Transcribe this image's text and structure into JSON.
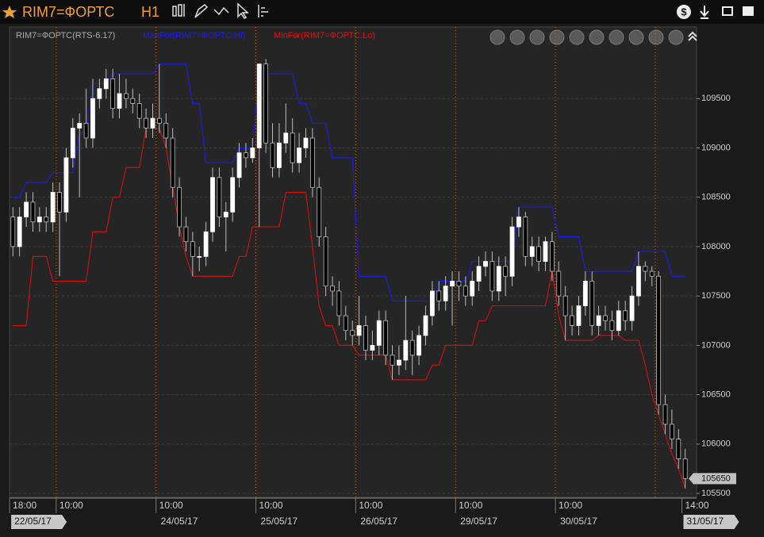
{
  "window": {
    "symbol": "RIM7=ФОРТС",
    "interval": "H1"
  },
  "chart_data": {
    "type": "candlestick",
    "name": "RIM7=ФОРТС(RTS-6.17)",
    "categories": [
      "18:00",
      null,
      null,
      null,
      null,
      null,
      null,
      "10:00",
      null,
      null,
      null,
      null,
      null,
      null,
      null,
      null,
      null,
      null,
      null,
      null,
      null,
      null,
      "10:00",
      null,
      null,
      null,
      null,
      null,
      null,
      null,
      null,
      null,
      null,
      null,
      null,
      null,
      null,
      "10:00",
      null,
      null,
      null,
      null,
      null,
      null,
      null,
      null,
      null,
      null,
      null,
      null,
      null,
      null,
      "10:00",
      null,
      null,
      null,
      null,
      null,
      null,
      null,
      null,
      null,
      null,
      null,
      null,
      null,
      null,
      "10:00",
      null,
      null,
      null,
      null,
      null,
      null,
      null,
      null,
      null,
      null,
      null,
      null,
      null,
      null,
      "10:00",
      null,
      null,
      null,
      null,
      null,
      null,
      null,
      null,
      null,
      null,
      null,
      null,
      null,
      null,
      null,
      null,
      null,
      null,
      "14:00"
    ],
    "dates": [
      "22/05/17",
      null,
      null,
      null,
      null,
      null,
      null,
      null,
      null,
      null,
      null,
      null,
      null,
      null,
      null,
      null,
      null,
      null,
      null,
      null,
      null,
      null,
      "24/05/17",
      null,
      null,
      null,
      null,
      null,
      null,
      null,
      null,
      null,
      null,
      null,
      null,
      null,
      null,
      "25/05/17",
      null,
      null,
      null,
      null,
      null,
      null,
      null,
      null,
      null,
      null,
      null,
      null,
      null,
      null,
      "26/05/17",
      null,
      null,
      null,
      null,
      null,
      null,
      null,
      null,
      null,
      null,
      null,
      null,
      null,
      null,
      "29/05/17",
      null,
      null,
      null,
      null,
      null,
      null,
      null,
      null,
      null,
      null,
      null,
      null,
      null,
      null,
      "30/05/17",
      null,
      null,
      null,
      null,
      null,
      null,
      null,
      null,
      null,
      null,
      null,
      null,
      null,
      null,
      null,
      null,
      null,
      null,
      "31/05/17"
    ],
    "opens": [
      108300,
      108000,
      108300,
      108450,
      108250,
      108300,
      108250,
      108550,
      108350,
      108900,
      109200,
      109250,
      109100,
      109500,
      109600,
      109700,
      109400,
      109550,
      109500,
      109450,
      109300,
      109200,
      109300,
      109250,
      109100,
      108600,
      108200,
      108050,
      107900,
      107900,
      108150,
      108700,
      108300,
      108350,
      108700,
      108950,
      108900,
      109000,
      109850,
      109050,
      108800,
      109050,
      109150,
      108850,
      109000,
      109100,
      108600,
      108100,
      107600,
      107550,
      107300,
      107150,
      107100,
      107200,
      106950,
      107000,
      107250,
      106900,
      106800,
      106850,
      107050,
      106900,
      107100,
      107300,
      107550,
      107450,
      107600,
      107650,
      107600,
      107500,
      107650,
      107800,
      107850,
      107550,
      107800,
      107700,
      108200,
      108300,
      107900,
      108000,
      107850,
      108050,
      107750,
      107500,
      107300,
      107200,
      107400,
      107650,
      107200,
      107300,
      107250,
      107150,
      107350,
      107250,
      107500,
      107800,
      107750,
      107700,
      106400,
      106200,
      106050,
      105850
    ],
    "highs": [
      108400,
      108400,
      108550,
      108550,
      108400,
      108400,
      108650,
      108650,
      109000,
      109300,
      109350,
      109600,
      109700,
      109700,
      109800,
      109800,
      109750,
      109700,
      109600,
      109550,
      109400,
      109450,
      109850,
      109350,
      109200,
      108700,
      108300,
      108150,
      108000,
      108250,
      108800,
      108800,
      108450,
      108800,
      109050,
      109050,
      109100,
      109800,
      109900,
      109250,
      109250,
      109450,
      109300,
      109150,
      109200,
      109200,
      108700,
      108200,
      107700,
      107650,
      107400,
      107250,
      107500,
      107300,
      107150,
      107350,
      107350,
      107000,
      107000,
      107500,
      107150,
      107200,
      107400,
      107650,
      107650,
      107700,
      107750,
      107750,
      107700,
      107750,
      107900,
      107950,
      107950,
      107900,
      107900,
      108300,
      108400,
      108350,
      108100,
      108100,
      108100,
      108150,
      107850,
      107600,
      107400,
      107500,
      107750,
      107750,
      107400,
      107400,
      107350,
      107450,
      107450,
      107600,
      107950,
      107850,
      107800,
      107750,
      106500,
      106350,
      106150,
      105950
    ],
    "lows": [
      107900,
      107900,
      108200,
      108150,
      108150,
      108150,
      108150,
      107700,
      108250,
      108800,
      108500,
      109000,
      109000,
      109400,
      109500,
      109300,
      109300,
      109400,
      109350,
      109200,
      109100,
      109100,
      109150,
      109000,
      108500,
      108100,
      107950,
      107700,
      107750,
      107800,
      108050,
      108200,
      107950,
      108250,
      108600,
      108800,
      108850,
      108200,
      108950,
      108700,
      108700,
      108950,
      108750,
      108750,
      108900,
      108500,
      108000,
      107500,
      107400,
      107200,
      107050,
      107000,
      107000,
      106850,
      106850,
      106900,
      106800,
      106650,
      106700,
      106750,
      106700,
      106800,
      107000,
      107200,
      107350,
      107350,
      107200,
      107450,
      107400,
      107400,
      107550,
      107700,
      107450,
      107450,
      107500,
      107600,
      108100,
      107800,
      107800,
      107750,
      107750,
      107650,
      107400,
      107050,
      107100,
      107100,
      107300,
      107100,
      107100,
      107150,
      107050,
      107100,
      107150,
      107150,
      107400,
      107650,
      107600,
      106300,
      106100,
      105950,
      105750,
      105550
    ],
    "closes": [
      108000,
      108300,
      108450,
      108250,
      108300,
      108250,
      108550,
      108350,
      108900,
      109200,
      109250,
      109100,
      109500,
      109600,
      109700,
      109400,
      109550,
      109500,
      109450,
      109300,
      109200,
      109300,
      109250,
      109100,
      108600,
      108200,
      108050,
      107900,
      107900,
      108150,
      108700,
      108300,
      108350,
      108700,
      108950,
      108900,
      109000,
      109850,
      109050,
      108800,
      109050,
      109150,
      108850,
      109000,
      109100,
      108600,
      108100,
      107600,
      107550,
      107300,
      107150,
      107100,
      107200,
      106950,
      107000,
      107250,
      106900,
      106800,
      106850,
      107050,
      106900,
      107100,
      107300,
      107550,
      107450,
      107600,
      107650,
      107600,
      107500,
      107650,
      107800,
      107850,
      107550,
      107800,
      107700,
      108200,
      108300,
      107900,
      108000,
      107850,
      108050,
      107750,
      107500,
      107300,
      107200,
      107400,
      107650,
      107200,
      107300,
      107250,
      107150,
      107350,
      107250,
      107500,
      107800,
      107750,
      107700,
      106400,
      106200,
      106050,
      105850,
      105650
    ],
    "lines": [
      {
        "name": "MaxFor(RIM7=ФОРТС.Hi)",
        "color": "#1a1aff",
        "values": [
          108500,
          108500,
          108650,
          108650,
          108650,
          108650,
          108750,
          108750,
          108750,
          108750,
          109150,
          109150,
          109650,
          109650,
          109650,
          109750,
          109750,
          109750,
          109750,
          109750,
          109750,
          109750,
          109850,
          109850,
          109850,
          109850,
          109850,
          109450,
          109450,
          108850,
          108850,
          108850,
          108850,
          108850,
          109000,
          109000,
          109000,
          109750,
          109750,
          109750,
          109750,
          109750,
          109750,
          109450,
          109450,
          109250,
          109250,
          109250,
          108900,
          108900,
          108900,
          108900,
          107700,
          107700,
          107700,
          107700,
          107700,
          107450,
          107450,
          107450,
          107450,
          107450,
          107450,
          107450,
          107650,
          107650,
          107650,
          107650,
          107650,
          107850,
          107850,
          107850,
          107850,
          107850,
          107850,
          107850,
          108400,
          108400,
          108400,
          108400,
          108400,
          108400,
          108100,
          108100,
          108100,
          108100,
          107750,
          107750,
          107750,
          107750,
          107750,
          107750,
          107750,
          107750,
          107950,
          107950,
          107950,
          107950,
          107950,
          107700,
          107700,
          107700
        ]
      },
      {
        "name": "MinFor(RIM7=ФОРТС.Lo)",
        "color": "#e01010",
        "values": [
          107200,
          107200,
          107200,
          107900,
          107900,
          107900,
          107650,
          107650,
          107650,
          107650,
          107650,
          107650,
          108150,
          108150,
          108150,
          108500,
          108500,
          108800,
          108800,
          108800,
          109200,
          109200,
          109200,
          109000,
          108600,
          108200,
          107900,
          107700,
          107700,
          107700,
          107700,
          107700,
          107700,
          107700,
          107900,
          107900,
          108200,
          108200,
          108200,
          108200,
          108200,
          108550,
          108550,
          108550,
          108550,
          108000,
          107400,
          107200,
          107200,
          107000,
          107000,
          107000,
          106900,
          106900,
          106900,
          106900,
          106900,
          106650,
          106650,
          106650,
          106650,
          106650,
          106650,
          106800,
          106800,
          107000,
          107000,
          107000,
          107000,
          107000,
          107250,
          107250,
          107400,
          107400,
          107400,
          107400,
          107400,
          107400,
          107400,
          107400,
          107400,
          107750,
          107300,
          107050,
          107050,
          107050,
          107050,
          107050,
          107100,
          107100,
          107100,
          107100,
          107050,
          107050,
          107050,
          106800,
          106500,
          106300,
          106100,
          105900,
          105750,
          105550
        ]
      }
    ],
    "ylim": [
      105460,
      110225
    ],
    "yticks": [
      105500,
      106000,
      106500,
      107000,
      107500,
      108000,
      108500,
      109000,
      109500
    ],
    "grid": true
  }
}
